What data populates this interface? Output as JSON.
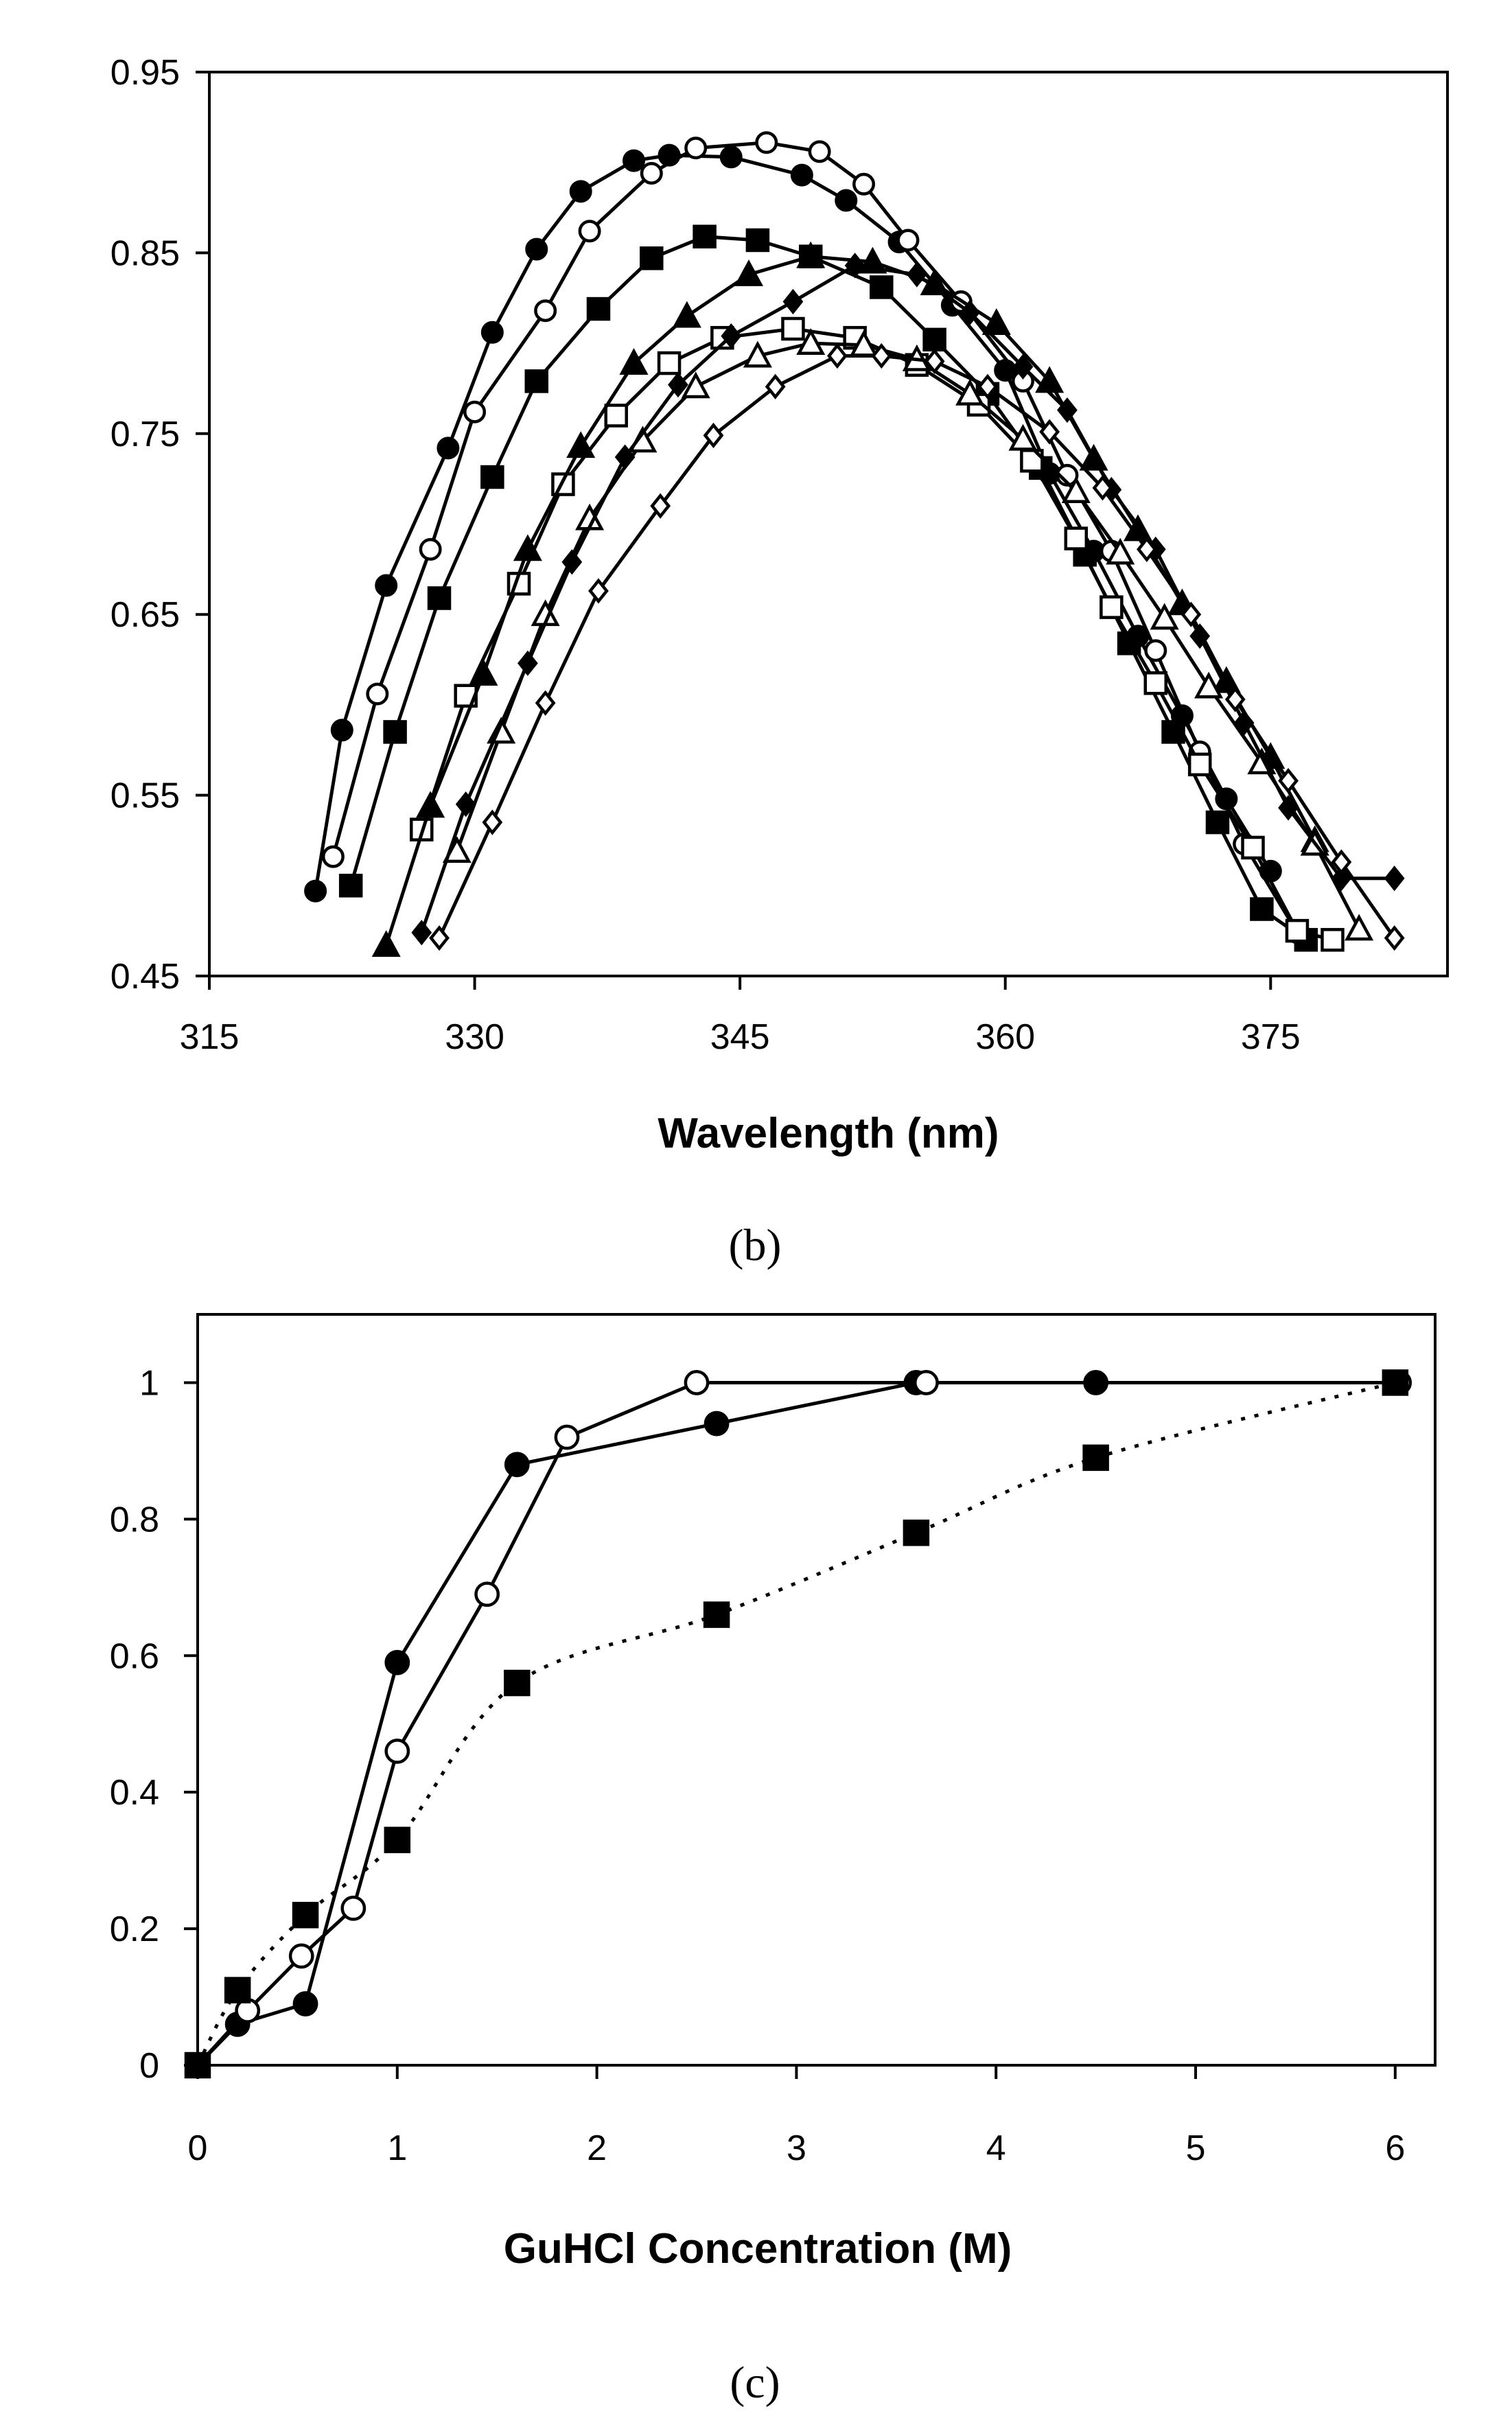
{
  "chart_data": [
    {
      "type": "line",
      "panel_label": "(b)",
      "title": "",
      "xlabel": "Wavelength (nm)",
      "ylabel": "",
      "xlim": [
        315,
        385
      ],
      "ylim": [
        0.45,
        0.95
      ],
      "xticks": [
        "315",
        "330",
        "345",
        "360",
        "375"
      ],
      "xtick_values": [
        315,
        330,
        345,
        360,
        375
      ],
      "yticks": [
        "0.45",
        "0.55",
        "0.65",
        "0.75",
        "0.85",
        "0.95"
      ],
      "ytick_values": [
        0.45,
        0.55,
        0.65,
        0.75,
        0.85,
        0.95
      ],
      "series": [
        {
          "name": "filled circle",
          "marker": "circle-filled",
          "x": [
            321,
            322.5,
            325,
            328.5,
            331,
            333.5,
            336,
            339,
            341,
            344.5,
            348.5,
            351,
            354,
            357,
            360,
            362.5,
            365,
            367.5,
            370,
            372.5,
            375
          ],
          "y": [
            0.497,
            0.586,
            0.666,
            0.742,
            0.806,
            0.852,
            0.884,
            0.901,
            0.904,
            0.903,
            0.893,
            0.879,
            0.856,
            0.821,
            0.785,
            0.728,
            0.685,
            0.638,
            0.594,
            0.548,
            0.508
          ]
        },
        {
          "name": "open circle",
          "marker": "circle-open",
          "x": [
            322,
            324.5,
            327.5,
            330,
            334,
            336.5,
            340,
            342.5,
            346.5,
            349.5,
            352,
            354.5,
            357.5,
            361,
            363.5,
            366,
            368.5,
            371,
            373.5,
            376.5
          ],
          "y": [
            0.516,
            0.606,
            0.686,
            0.762,
            0.818,
            0.862,
            0.894,
            0.908,
            0.911,
            0.906,
            0.888,
            0.857,
            0.823,
            0.779,
            0.727,
            0.685,
            0.63,
            0.574,
            0.523,
            0.474
          ]
        },
        {
          "name": "filled square",
          "marker": "square-filled",
          "x": [
            323,
            325.5,
            328,
            331,
            333.5,
            337,
            340,
            343,
            346,
            349,
            353,
            356,
            359,
            362,
            364.5,
            367,
            369.5,
            372,
            374.5,
            377
          ],
          "y": [
            0.5,
            0.585,
            0.659,
            0.726,
            0.779,
            0.819,
            0.847,
            0.859,
            0.857,
            0.848,
            0.831,
            0.802,
            0.772,
            0.731,
            0.683,
            0.634,
            0.585,
            0.535,
            0.487,
            0.47
          ]
        },
        {
          "name": "open square",
          "marker": "square-open",
          "x": [
            327,
            329.5,
            332.5,
            335,
            338,
            341,
            344,
            348,
            351.5,
            355,
            358.5,
            361.5,
            364,
            366,
            368.5,
            371,
            374,
            376.5,
            378.5
          ],
          "y": [
            0.531,
            0.605,
            0.667,
            0.722,
            0.76,
            0.789,
            0.803,
            0.808,
            0.803,
            0.788,
            0.766,
            0.735,
            0.692,
            0.654,
            0.612,
            0.567,
            0.521,
            0.475,
            0.47
          ]
        },
        {
          "name": "filled triangle",
          "marker": "triangle-filled",
          "x": [
            325,
            327.5,
            330.5,
            333,
            336,
            339,
            342,
            345.5,
            349,
            352.5,
            356,
            359.5,
            362.5,
            365,
            367.5,
            370,
            372.5,
            375,
            377.5
          ],
          "y": [
            0.467,
            0.544,
            0.617,
            0.686,
            0.743,
            0.789,
            0.815,
            0.838,
            0.848,
            0.845,
            0.833,
            0.811,
            0.779,
            0.736,
            0.697,
            0.656,
            0.613,
            0.571,
            0.525
          ]
        },
        {
          "name": "open triangle",
          "marker": "triangle-open",
          "x": [
            329,
            331.5,
            334,
            336.5,
            339.5,
            342.5,
            346,
            349,
            352,
            355,
            358,
            361,
            364,
            366.5,
            369,
            371.5,
            374.5,
            377.5,
            380
          ],
          "y": [
            0.519,
            0.585,
            0.65,
            0.703,
            0.746,
            0.776,
            0.793,
            0.8,
            0.799,
            0.791,
            0.772,
            0.747,
            0.718,
            0.684,
            0.648,
            0.61,
            0.568,
            0.523,
            0.476
          ]
        },
        {
          "name": "filled diamond",
          "marker": "diamond-filled",
          "x": [
            327,
            329.5,
            333,
            335.5,
            338.5,
            341.5,
            344.5,
            348,
            351.5,
            355,
            358,
            361,
            363.5,
            366,
            368.5,
            371,
            373.5,
            376,
            379,
            382
          ],
          "y": [
            0.474,
            0.545,
            0.623,
            0.679,
            0.737,
            0.777,
            0.804,
            0.823,
            0.843,
            0.838,
            0.817,
            0.787,
            0.763,
            0.719,
            0.686,
            0.638,
            0.59,
            0.543,
            0.504,
            0.504
          ]
        },
        {
          "name": "open diamond",
          "marker": "diamond-open",
          "x": [
            328,
            331,
            334,
            337,
            340.5,
            343.5,
            347,
            350.5,
            353,
            356,
            359,
            362.5,
            365.5,
            368,
            370.5,
            373,
            376,
            379,
            382
          ],
          "y": [
            0.471,
            0.535,
            0.601,
            0.663,
            0.71,
            0.749,
            0.776,
            0.793,
            0.793,
            0.79,
            0.776,
            0.751,
            0.72,
            0.686,
            0.65,
            0.603,
            0.558,
            0.513,
            0.471
          ]
        }
      ]
    },
    {
      "type": "line",
      "panel_label": "(c)",
      "title": "",
      "xlabel": "GuHCl Concentration (M)",
      "ylabel": "",
      "xlim": [
        0,
        6.2
      ],
      "ylim": [
        0,
        1.1
      ],
      "xticks": [
        "0",
        "1",
        "2",
        "3",
        "4",
        "5",
        "6"
      ],
      "xtick_values": [
        0,
        1,
        2,
        3,
        4,
        5,
        6
      ],
      "yticks": [
        "0",
        "0.2",
        "0.4",
        "0.6",
        "0.8",
        "1"
      ],
      "ytick_values": [
        0,
        0.2,
        0.4,
        0.6,
        0.8,
        1
      ],
      "series": [
        {
          "name": "filled circle",
          "marker": "circle-filled",
          "line": "solid",
          "x": [
            0,
            0.2,
            0.54,
            1.0,
            1.6,
            2.6,
            3.6,
            4.5,
            6.0
          ],
          "y": [
            0,
            0.06,
            0.09,
            0.59,
            0.88,
            0.94,
            1.0,
            1.0,
            1.0
          ]
        },
        {
          "name": "open circle",
          "marker": "circle-open",
          "line": "solid",
          "x": [
            0,
            0.25,
            0.52,
            0.78,
            1.0,
            1.45,
            1.85,
            2.5,
            3.65,
            6.02
          ],
          "y": [
            0,
            0.08,
            0.16,
            0.23,
            0.46,
            0.69,
            0.92,
            1.0,
            1.0,
            1.0
          ]
        },
        {
          "name": "filled square",
          "marker": "square-filled",
          "line": "dotted",
          "x": [
            0,
            0.2,
            0.54,
            1.0,
            1.6,
            2.6,
            3.6,
            4.5,
            6.0
          ],
          "y": [
            0,
            0.11,
            0.22,
            0.33,
            0.56,
            0.66,
            0.78,
            0.89,
            1.0
          ]
        }
      ]
    }
  ]
}
